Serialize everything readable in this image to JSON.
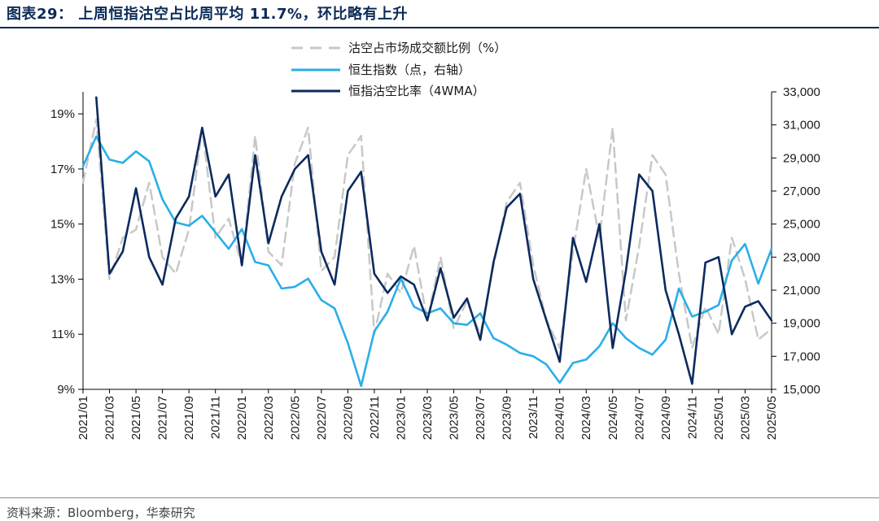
{
  "header": {
    "title": "图表29：  上周恒指沽空占比周平均 11.7%，环比略有上升"
  },
  "footer": {
    "source": "资料来源：Bloomberg，华泰研究"
  },
  "colors": {
    "title": "#0b2a57",
    "gray": "#c8c8c8",
    "light_blue": "#2aaee8",
    "dark_navy": "#0b2a5e"
  },
  "chart_data": {
    "type": "line",
    "legend_position": "top-center",
    "grid": false,
    "x_range": [
      "2021-01",
      "2025-05"
    ],
    "x_tick_labels": [
      "2021/01",
      "2021/03",
      "2021/05",
      "2021/07",
      "2021/09",
      "2021/11",
      "2022/01",
      "2022/03",
      "2022/05",
      "2022/07",
      "2022/09",
      "2022/11",
      "2023/01",
      "2023/03",
      "2023/05",
      "2023/07",
      "2023/09",
      "2023/11",
      "2024/01",
      "2024/03",
      "2024/05",
      "2024/07",
      "2024/09",
      "2024/11",
      "2025/01",
      "2025/03",
      "2025/05"
    ],
    "y_left": {
      "ticks": [
        "9%",
        "11%",
        "13%",
        "15%",
        "17%",
        "19%"
      ],
      "ylim": [
        9,
        19.8
      ]
    },
    "y_right": {
      "ticks": [
        "15,000",
        "17,000",
        "19,000",
        "21,000",
        "23,000",
        "25,000",
        "27,000",
        "29,000",
        "31,000",
        "33,000"
      ],
      "ylim": [
        15000,
        33000
      ]
    },
    "series": [
      {
        "name": "沽空占市场成交额比例（%）",
        "axis": "left",
        "color": "#c8c8c8",
        "dash": true,
        "x": [
          "2021-01",
          "2021-02",
          "2021-03",
          "2021-04",
          "2021-05",
          "2021-06",
          "2021-07",
          "2021-08",
          "2021-09",
          "2021-10",
          "2021-11",
          "2021-12",
          "2022-01",
          "2022-02",
          "2022-03",
          "2022-04",
          "2022-05",
          "2022-06",
          "2022-07",
          "2022-08",
          "2022-09",
          "2022-10",
          "2022-11",
          "2022-12",
          "2023-01",
          "2023-02",
          "2023-03",
          "2023-04",
          "2023-05",
          "2023-06",
          "2023-07",
          "2023-08",
          "2023-09",
          "2023-10",
          "2023-11",
          "2023-12",
          "2024-01",
          "2024-02",
          "2024-03",
          "2024-04",
          "2024-05",
          "2024-06",
          "2024-07",
          "2024-08",
          "2024-09",
          "2024-10",
          "2024-11",
          "2024-12",
          "2025-01",
          "2025-02",
          "2025-03",
          "2025-04",
          "2025-05"
        ],
        "values": [
          16.5,
          18.8,
          13.0,
          14.5,
          14.8,
          16.5,
          13.8,
          13.2,
          14.8,
          18.5,
          14.5,
          15.2,
          13.5,
          18.2,
          14.0,
          13.5,
          17.2,
          18.5,
          13.3,
          13.8,
          17.5,
          18.2,
          11.0,
          13.2,
          12.5,
          14.2,
          11.5,
          13.8,
          11.2,
          12.2,
          11.0,
          13.5,
          15.8,
          16.5,
          13.5,
          11.5,
          10.5,
          14.0,
          17.0,
          14.5,
          18.5,
          11.5,
          14.2,
          17.5,
          16.8,
          13.2,
          10.5,
          12.0,
          11.0,
          14.5,
          13.0,
          10.8,
          11.2
        ]
      },
      {
        "name": "恒生指数（点，右轴）",
        "axis": "right",
        "color": "#2aaee8",
        "x": [
          "2021-01",
          "2021-02",
          "2021-03",
          "2021-04",
          "2021-05",
          "2021-06",
          "2021-07",
          "2021-08",
          "2021-09",
          "2021-10",
          "2021-11",
          "2021-12",
          "2022-01",
          "2022-02",
          "2022-03",
          "2022-04",
          "2022-05",
          "2022-06",
          "2022-07",
          "2022-08",
          "2022-09",
          "2022-10",
          "2022-11",
          "2022-12",
          "2023-01",
          "2023-02",
          "2023-03",
          "2023-04",
          "2023-05",
          "2023-06",
          "2023-07",
          "2023-08",
          "2023-09",
          "2023-10",
          "2023-11",
          "2023-12",
          "2024-01",
          "2024-02",
          "2024-03",
          "2024-04",
          "2024-05",
          "2024-06",
          "2024-07",
          "2024-08",
          "2024-09",
          "2024-10",
          "2024-11",
          "2024-12",
          "2025-01",
          "2025-02",
          "2025-03",
          "2025-04",
          "2025-05"
        ],
        "values": [
          28500,
          30300,
          28900,
          28700,
          29400,
          28800,
          26500,
          25100,
          24900,
          25500,
          24500,
          23500,
          24700,
          22700,
          22500,
          21100,
          21200,
          21700,
          20400,
          19900,
          17800,
          15200,
          18500,
          19700,
          21700,
          20000,
          19600,
          19900,
          19000,
          18900,
          19600,
          18100,
          17700,
          17200,
          17000,
          16500,
          15400,
          16600,
          16800,
          17600,
          19000,
          18100,
          17500,
          17100,
          18000,
          21100,
          19400,
          19700,
          20100,
          22800,
          23800,
          21400,
          23500
        ]
      },
      {
        "name": "恒指沽空比率（4WMA）",
        "axis": "left",
        "color": "#0b2a5e",
        "x": [
          "2021-02",
          "2021-03",
          "2021-04",
          "2021-05",
          "2021-06",
          "2021-07",
          "2021-08",
          "2021-09",
          "2021-10",
          "2021-11",
          "2021-12",
          "2022-01",
          "2022-02",
          "2022-03",
          "2022-04",
          "2022-05",
          "2022-06",
          "2022-07",
          "2022-08",
          "2022-09",
          "2022-10",
          "2022-11",
          "2022-12",
          "2023-01",
          "2023-02",
          "2023-03",
          "2023-04",
          "2023-05",
          "2023-06",
          "2023-07",
          "2023-08",
          "2023-09",
          "2023-10",
          "2023-11",
          "2023-12",
          "2024-01",
          "2024-02",
          "2024-03",
          "2024-04",
          "2024-05",
          "2024-06",
          "2024-07",
          "2024-08",
          "2024-09",
          "2024-10",
          "2024-11",
          "2024-12",
          "2025-01",
          "2025-02",
          "2025-03",
          "2025-04",
          "2025-05"
        ],
        "values": [
          19.6,
          13.2,
          14.0,
          16.3,
          13.8,
          12.8,
          15.2,
          16.0,
          18.5,
          16.0,
          16.8,
          13.5,
          17.5,
          14.3,
          16.0,
          17.0,
          17.5,
          14.0,
          12.8,
          16.2,
          16.9,
          13.2,
          12.5,
          13.1,
          12.8,
          11.5,
          13.4,
          11.6,
          12.3,
          10.8,
          13.6,
          15.6,
          16.1,
          13.0,
          11.5,
          10.0,
          14.5,
          12.9,
          15.0,
          10.5,
          13.3,
          16.8,
          16.2,
          12.6,
          11.0,
          9.2,
          13.6,
          13.8,
          11.0,
          12.0,
          12.2,
          11.5
        ]
      }
    ]
  }
}
